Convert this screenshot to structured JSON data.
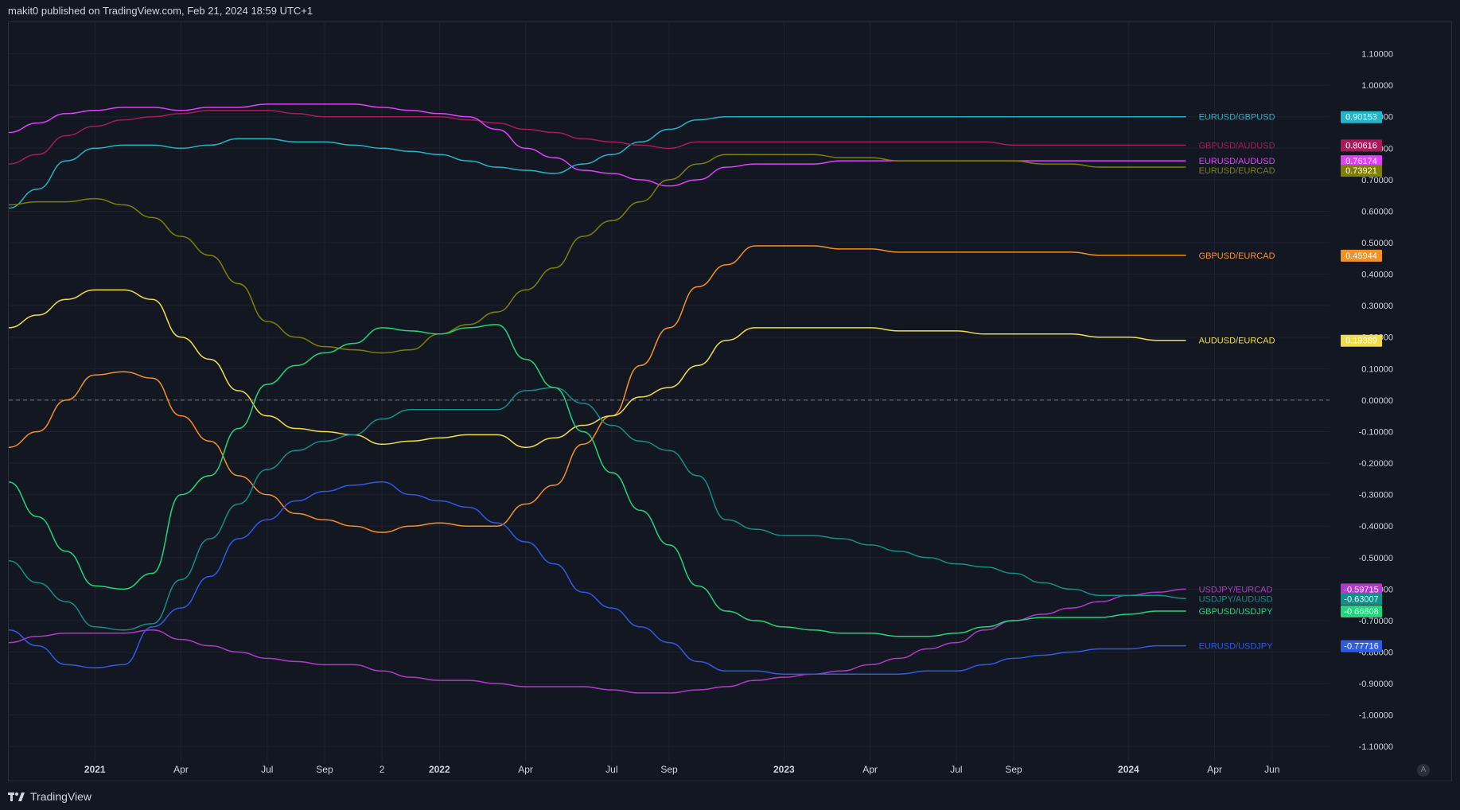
{
  "header": {
    "text": "makit0 published on TradingView.com, Feb 21, 2024 18:59 UTC+1"
  },
  "footer": {
    "brand": "TradingView"
  },
  "auto_label": "A",
  "colors": {
    "background": "#131722",
    "grid": "#1e222d",
    "axis_text": "#d1d4dc",
    "zero_line": "#787b86"
  },
  "chart_data": {
    "type": "line",
    "title": "",
    "ylim": [
      -1.15,
      1.2
    ],
    "y_ticks": [
      "1.10000",
      "1.00000",
      "0.90000",
      "0.80000",
      "0.70000",
      "0.60000",
      "0.50000",
      "0.40000",
      "0.30000",
      "0.20000",
      "0.10000",
      "0.00000",
      "-0.10000",
      "-0.20000",
      "-0.30000",
      "-0.40000",
      "-0.50000",
      "-0.60000",
      "-0.70000",
      "-0.80000",
      "-0.90000",
      "-1.00000",
      "-1.10000"
    ],
    "x_ticks": [
      {
        "label": "2021",
        "x": "2021-01",
        "bold": true
      },
      {
        "label": "Apr",
        "x": "2021-04",
        "bold": false
      },
      {
        "label": "Jul",
        "x": "2021-07",
        "bold": false
      },
      {
        "label": "Sep",
        "x": "2021-09",
        "bold": false
      },
      {
        "label": "2",
        "x": "2021-11",
        "bold": false
      },
      {
        "label": "2022",
        "x": "2022-01",
        "bold": true
      },
      {
        "label": "Apr",
        "x": "2022-04",
        "bold": false
      },
      {
        "label": "Jul",
        "x": "2022-07",
        "bold": false
      },
      {
        "label": "Sep",
        "x": "2022-09",
        "bold": false
      },
      {
        "label": "2023",
        "x": "2023-01",
        "bold": true
      },
      {
        "label": "Apr",
        "x": "2023-04",
        "bold": false
      },
      {
        "label": "Jul",
        "x": "2023-07",
        "bold": false
      },
      {
        "label": "Sep",
        "x": "2023-09",
        "bold": false
      },
      {
        "label": "2024",
        "x": "2024-01",
        "bold": true
      },
      {
        "label": "Apr",
        "x": "2024-04",
        "bold": false
      },
      {
        "label": "Jun",
        "x": "2024-06",
        "bold": false
      }
    ],
    "x": [
      "2020-10",
      "2020-11",
      "2020-12",
      "2021-01",
      "2021-02",
      "2021-03",
      "2021-04",
      "2021-05",
      "2021-06",
      "2021-07",
      "2021-08",
      "2021-09",
      "2021-10",
      "2021-11",
      "2021-12",
      "2022-01",
      "2022-02",
      "2022-03",
      "2022-04",
      "2022-05",
      "2022-06",
      "2022-07",
      "2022-08",
      "2022-09",
      "2022-10",
      "2022-11",
      "2022-12",
      "2023-01",
      "2023-02",
      "2023-03",
      "2023-04",
      "2023-05",
      "2023-06",
      "2023-07",
      "2023-08",
      "2023-09",
      "2023-10",
      "2023-11",
      "2023-12",
      "2024-01",
      "2024-02",
      "2024-03"
    ],
    "series": [
      {
        "name": "EURUSD/GBPUSD",
        "color": "#22b5c9",
        "last": "0.90153",
        "values": [
          0.61,
          0.67,
          0.76,
          0.8,
          0.81,
          0.81,
          0.8,
          0.81,
          0.83,
          0.83,
          0.82,
          0.82,
          0.81,
          0.8,
          0.79,
          0.78,
          0.76,
          0.74,
          0.73,
          0.72,
          0.75,
          0.78,
          0.82,
          0.86,
          0.89,
          0.9,
          0.9,
          0.9,
          0.9,
          0.9,
          0.9,
          0.9,
          0.9,
          0.9,
          0.9,
          0.9,
          0.9,
          0.9,
          0.9,
          0.9,
          0.9,
          0.9
        ]
      },
      {
        "name": "GBPUSD/AUDUSD",
        "color": "#a81b5a",
        "last": "0.80616",
        "values": [
          0.75,
          0.78,
          0.84,
          0.87,
          0.89,
          0.9,
          0.91,
          0.92,
          0.92,
          0.92,
          0.91,
          0.9,
          0.9,
          0.9,
          0.9,
          0.9,
          0.89,
          0.88,
          0.86,
          0.85,
          0.83,
          0.82,
          0.81,
          0.8,
          0.82,
          0.82,
          0.82,
          0.82,
          0.82,
          0.82,
          0.82,
          0.82,
          0.82,
          0.82,
          0.82,
          0.81,
          0.81,
          0.81,
          0.81,
          0.81,
          0.81,
          0.81
        ]
      },
      {
        "name": "EURUSD/AUDUSD",
        "color": "#e040fb",
        "last": "0.76174",
        "values": [
          0.85,
          0.88,
          0.91,
          0.92,
          0.93,
          0.93,
          0.92,
          0.93,
          0.93,
          0.94,
          0.94,
          0.94,
          0.94,
          0.93,
          0.92,
          0.91,
          0.9,
          0.86,
          0.8,
          0.77,
          0.73,
          0.72,
          0.7,
          0.68,
          0.7,
          0.74,
          0.75,
          0.75,
          0.75,
          0.76,
          0.76,
          0.76,
          0.76,
          0.76,
          0.76,
          0.76,
          0.76,
          0.76,
          0.76,
          0.76,
          0.76,
          0.76
        ]
      },
      {
        "name": "EURUSD/EURCAD",
        "color": "#808000",
        "last": "0.73921",
        "values": [
          0.62,
          0.63,
          0.63,
          0.64,
          0.62,
          0.58,
          0.52,
          0.46,
          0.37,
          0.25,
          0.2,
          0.17,
          0.16,
          0.15,
          0.16,
          0.21,
          0.24,
          0.28,
          0.35,
          0.42,
          0.52,
          0.57,
          0.63,
          0.7,
          0.75,
          0.78,
          0.78,
          0.78,
          0.78,
          0.77,
          0.77,
          0.76,
          0.76,
          0.76,
          0.76,
          0.76,
          0.75,
          0.75,
          0.74,
          0.74,
          0.74,
          0.74
        ]
      },
      {
        "name": "GBPUSD/EURCAD",
        "color": "#f59024",
        "last": "0.45944",
        "values": [
          -0.15,
          -0.1,
          0.0,
          0.08,
          0.09,
          0.07,
          -0.05,
          -0.13,
          -0.24,
          -0.3,
          -0.36,
          -0.38,
          -0.4,
          -0.42,
          -0.4,
          -0.39,
          -0.4,
          -0.4,
          -0.33,
          -0.27,
          -0.14,
          -0.05,
          0.11,
          0.23,
          0.36,
          0.43,
          0.49,
          0.49,
          0.49,
          0.48,
          0.48,
          0.47,
          0.47,
          0.47,
          0.47,
          0.47,
          0.47,
          0.47,
          0.46,
          0.46,
          0.46,
          0.46
        ]
      },
      {
        "name": "AUDUSD/EURCAD",
        "color": "#f2dd48",
        "last": "0.19389",
        "values": [
          0.23,
          0.27,
          0.32,
          0.35,
          0.35,
          0.32,
          0.2,
          0.13,
          0.03,
          -0.05,
          -0.09,
          -0.1,
          -0.11,
          -0.14,
          -0.13,
          -0.12,
          -0.11,
          -0.11,
          -0.15,
          -0.12,
          -0.08,
          -0.05,
          0.01,
          0.04,
          0.11,
          0.19,
          0.23,
          0.23,
          0.23,
          0.23,
          0.23,
          0.22,
          0.22,
          0.22,
          0.21,
          0.21,
          0.21,
          0.21,
          0.2,
          0.2,
          0.19,
          0.19
        ]
      },
      {
        "name": "USDJPY/EURCAD",
        "color": "#b03ac9",
        "last": "-0.59715",
        "values": [
          -0.77,
          -0.75,
          -0.74,
          -0.74,
          -0.74,
          -0.73,
          -0.76,
          -0.78,
          -0.8,
          -0.82,
          -0.83,
          -0.84,
          -0.84,
          -0.86,
          -0.88,
          -0.89,
          -0.89,
          -0.9,
          -0.91,
          -0.91,
          -0.91,
          -0.92,
          -0.93,
          -0.93,
          -0.92,
          -0.91,
          -0.89,
          -0.88,
          -0.87,
          -0.86,
          -0.84,
          -0.82,
          -0.79,
          -0.77,
          -0.73,
          -0.7,
          -0.68,
          -0.66,
          -0.64,
          -0.62,
          -0.61,
          -0.6
        ]
      },
      {
        "name": "USDJPY/AUDUSD",
        "color": "#138f89",
        "last": "-0.63007",
        "values": [
          -0.51,
          -0.58,
          -0.64,
          -0.72,
          -0.73,
          -0.71,
          -0.57,
          -0.44,
          -0.33,
          -0.22,
          -0.16,
          -0.13,
          -0.11,
          -0.06,
          -0.03,
          -0.03,
          -0.03,
          -0.03,
          0.03,
          0.04,
          -0.01,
          -0.08,
          -0.13,
          -0.16,
          -0.24,
          -0.38,
          -0.41,
          -0.43,
          -0.43,
          -0.44,
          -0.46,
          -0.48,
          -0.5,
          -0.52,
          -0.53,
          -0.55,
          -0.58,
          -0.6,
          -0.62,
          -0.62,
          -0.62,
          -0.63
        ]
      },
      {
        "name": "GBPUSD/USDJPY",
        "color": "#1fd67a",
        "last": "-0.66808",
        "values": [
          -0.26,
          -0.37,
          -0.48,
          -0.59,
          -0.6,
          -0.55,
          -0.3,
          -0.24,
          -0.09,
          0.05,
          0.11,
          0.15,
          0.18,
          0.23,
          0.22,
          0.21,
          0.23,
          0.24,
          0.13,
          0.04,
          -0.1,
          -0.23,
          -0.35,
          -0.46,
          -0.59,
          -0.67,
          -0.7,
          -0.72,
          -0.73,
          -0.74,
          -0.74,
          -0.75,
          -0.75,
          -0.74,
          -0.72,
          -0.7,
          -0.69,
          -0.69,
          -0.69,
          -0.68,
          -0.67,
          -0.67
        ]
      },
      {
        "name": "EURUSD/USDJPY",
        "color": "#2e5be6",
        "last": "-0.77716",
        "values": [
          -0.73,
          -0.78,
          -0.84,
          -0.85,
          -0.84,
          -0.72,
          -0.66,
          -0.56,
          -0.44,
          -0.38,
          -0.32,
          -0.29,
          -0.27,
          -0.26,
          -0.3,
          -0.32,
          -0.34,
          -0.39,
          -0.45,
          -0.52,
          -0.61,
          -0.66,
          -0.72,
          -0.77,
          -0.83,
          -0.86,
          -0.86,
          -0.87,
          -0.87,
          -0.87,
          -0.87,
          -0.87,
          -0.86,
          -0.86,
          -0.84,
          -0.82,
          -0.81,
          -0.8,
          -0.79,
          -0.79,
          -0.78,
          -0.78
        ]
      }
    ]
  }
}
